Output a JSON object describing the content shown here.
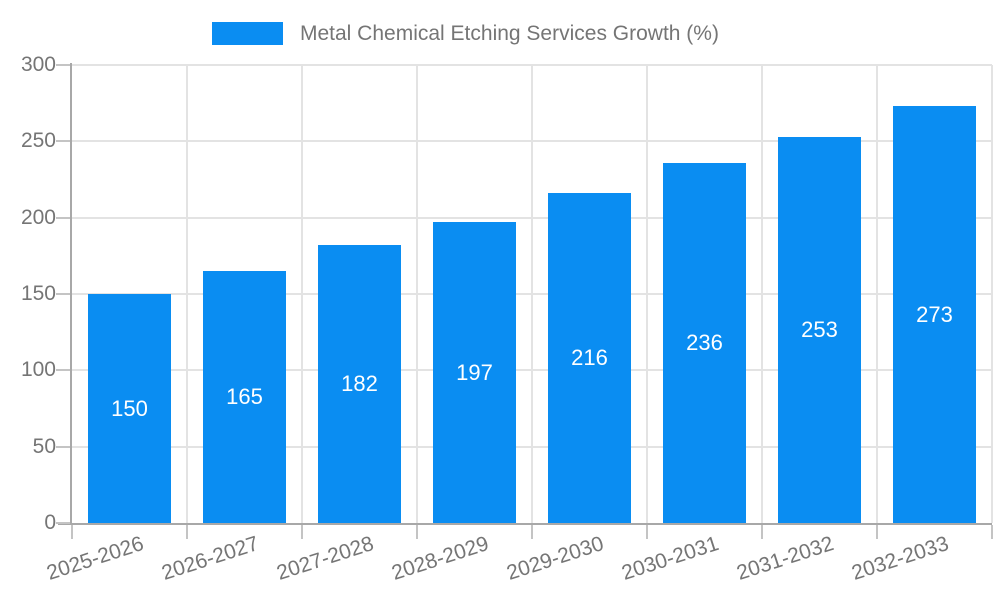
{
  "chart_data": {
    "type": "bar",
    "title": "Metal Chemical Etching Services Growth (%)",
    "categories": [
      "2025-2026",
      "2026-2027",
      "2027-2028",
      "2028-2029",
      "2029-2030",
      "2030-2031",
      "2031-2032",
      "2032-2033"
    ],
    "values": [
      150,
      165,
      182,
      197,
      216,
      236,
      253,
      273
    ],
    "yticks": [
      0,
      50,
      100,
      150,
      200,
      250,
      300
    ],
    "ylim": [
      0,
      300
    ],
    "xlabel": "",
    "ylabel": "",
    "grid": true,
    "legend_position": "top",
    "colors": {
      "bar": "#0a8df2",
      "value_label": "#ffffff",
      "axis": "#a8a8a8",
      "tick": "#c4c4c4",
      "grid": "#e3e3e3",
      "text": "#757575"
    }
  }
}
